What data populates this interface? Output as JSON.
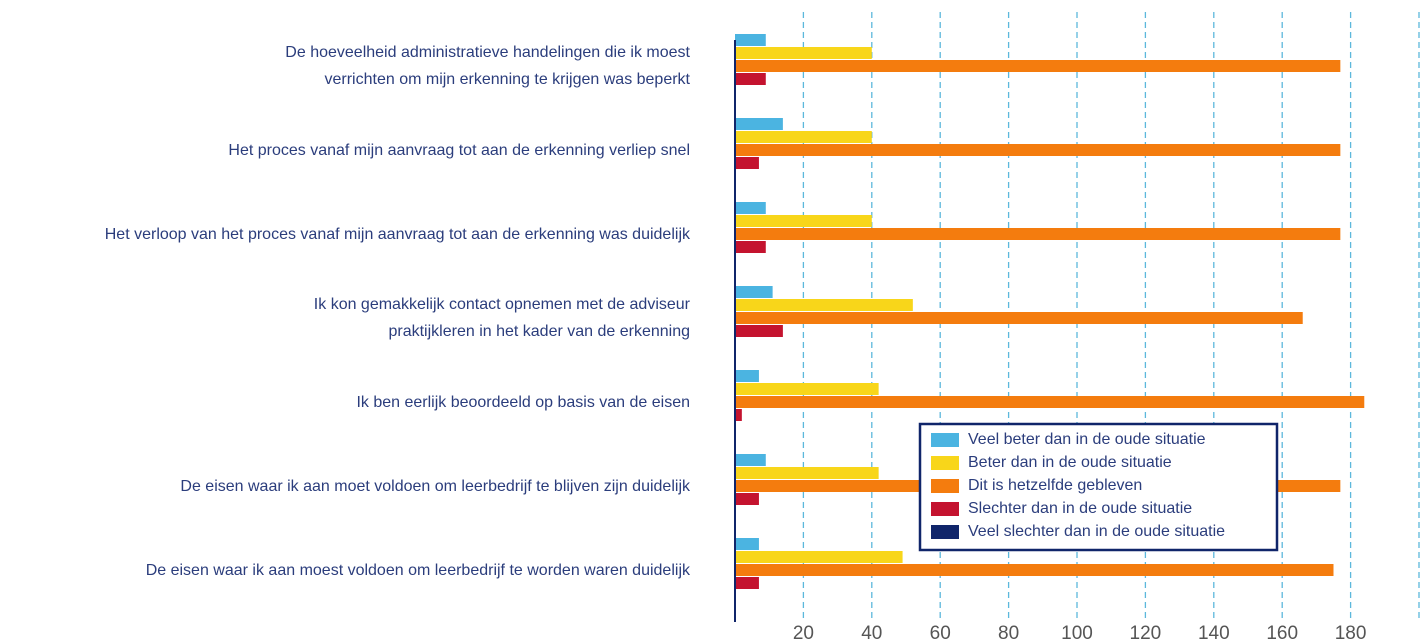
{
  "chart_data": {
    "type": "bar",
    "orientation": "horizontal",
    "categories": [
      "De hoeveelheid administratieve handelingen die ik moest\nverrichten  om mijn erkenning te krijgen was beperkt",
      "Het proces vanaf mijn aanvraag tot aan de erkenning verliep snel",
      "Het verloop van het proces vanaf mijn aanvraag tot aan de erkenning was duidelijk",
      "Ik kon gemakkelijk contact opnemen met de adviseur\npraktijkleren in het kader van de erkenning",
      "Ik ben eerlijk beoordeeld op basis van de eisen",
      "De eisen waar ik aan moet voldoen om leerbedrijf te blijven zijn duidelijk",
      "De eisen waar ik aan moest voldoen om leerbedrijf te worden waren duidelijk"
    ],
    "series": [
      {
        "name": "Veel beter dan in de oude situatie",
        "color": "#4bb4e1",
        "values": [
          9,
          14,
          9,
          11,
          7,
          9,
          7
        ]
      },
      {
        "name": "Beter dan in de oude situatie",
        "color": "#f8d61a",
        "values": [
          40,
          40,
          40,
          52,
          42,
          42,
          49
        ]
      },
      {
        "name": "Dit is hetzelfde gebleven",
        "color": "#f47c0e",
        "values": [
          177,
          177,
          177,
          166,
          184,
          177,
          175
        ]
      },
      {
        "name": "Slechter dan in de oude situatie",
        "color": "#c4132f",
        "values": [
          9,
          7,
          9,
          14,
          2,
          7,
          7
        ]
      },
      {
        "name": "Veel slechter dan in de oude situatie",
        "color": "#10256a",
        "values": [
          0,
          0,
          0,
          0,
          0,
          0,
          0
        ]
      }
    ],
    "xlim": [
      0,
      200
    ],
    "xticks": [
      20,
      40,
      60,
      80,
      100,
      120,
      140,
      160,
      180
    ],
    "grid": true,
    "legend": "lower right"
  }
}
